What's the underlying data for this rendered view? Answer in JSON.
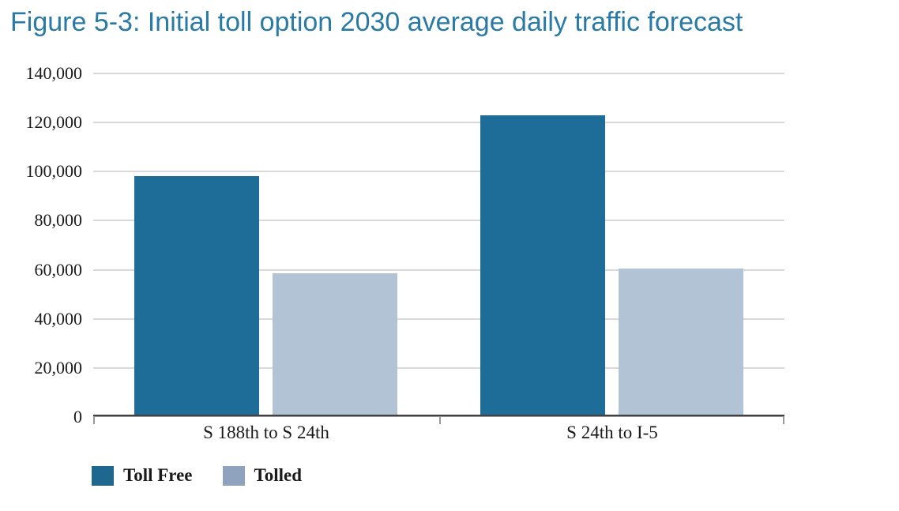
{
  "title": {
    "text": "Figure 5-3: Initial toll option 2030 average daily traffic forecast",
    "color": "#2a7aa6"
  },
  "chart_data": {
    "type": "bar",
    "title": "Figure 5-3: Initial toll option 2030 average daily traffic forecast",
    "categories": [
      "S 188th to S 24th",
      "S 24th to I-5"
    ],
    "series": [
      {
        "name": "Toll Free",
        "values": [
          98000,
          123000
        ],
        "bar_color": "#1e6d99",
        "legend_swatch_color": "#1e6890"
      },
      {
        "name": "Tolled",
        "values": [
          58500,
          60500
        ],
        "bar_color": "#b3c3d6",
        "legend_swatch_color": "#90a3be"
      }
    ],
    "xlabel": "",
    "ylabel": "",
    "ylim": [
      0,
      140000
    ],
    "yticks": [
      0,
      20000,
      40000,
      60000,
      80000,
      100000,
      120000,
      140000
    ],
    "ytick_labels": [
      "0",
      "20,000",
      "40,000",
      "60,000",
      "80,000",
      "100,000",
      "120,000",
      "140,000"
    ],
    "grid": "horizontal gridlines on, at every 20,000",
    "legend_position": "bottom-left",
    "colors": {
      "gridline": "#d9d9d9",
      "axis_line": "#414144",
      "tick_mark": "#999999",
      "text": "#1a1a1a"
    }
  }
}
